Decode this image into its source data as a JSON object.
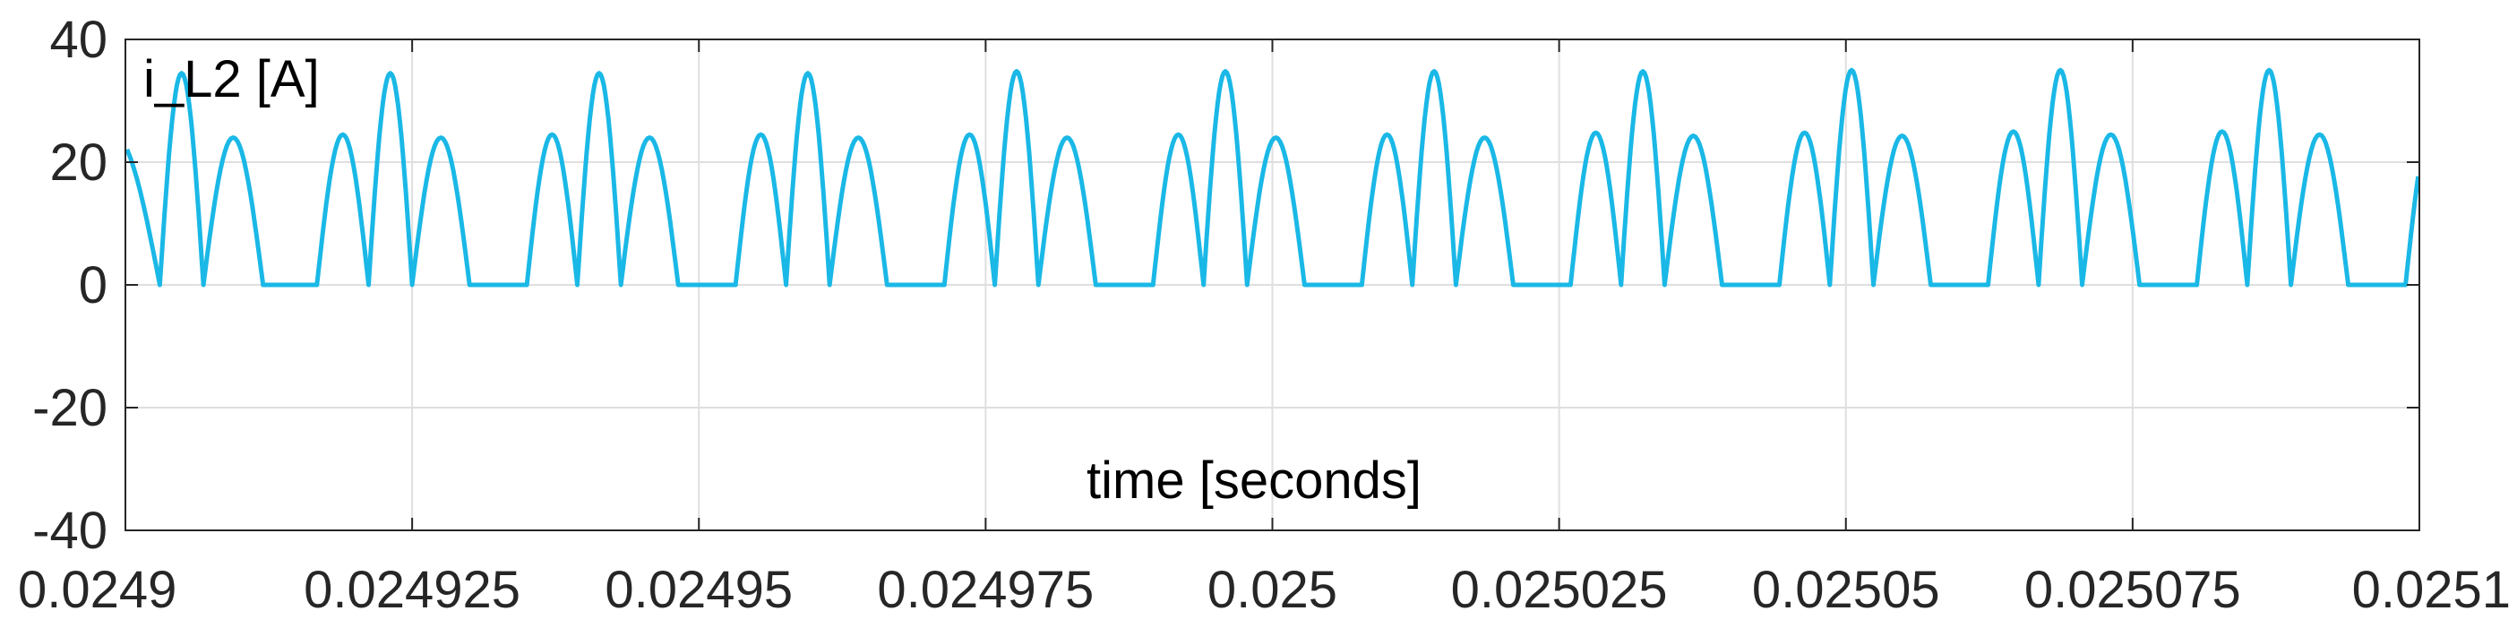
{
  "chart_data": {
    "type": "line",
    "title": "",
    "xlabel": "time [seconds]",
    "ylabel": "",
    "xlim": [
      0.0249,
      0.0251
    ],
    "ylim": [
      -40,
      40
    ],
    "x_ticks": [
      0.0249,
      0.024925,
      0.02495,
      0.024975,
      0.025,
      0.025025,
      0.02505,
      0.025075,
      0.0251
    ],
    "x_tick_labels": [
      "0.0249",
      "0.024925",
      "0.02495",
      "0.024975",
      "0.025",
      "0.025025",
      "0.02505",
      "0.025075",
      "0.0251"
    ],
    "y_ticks": [
      -40,
      -20,
      0,
      20,
      40
    ],
    "y_tick_labels": [
      "-40",
      "-20",
      "0",
      "20",
      "40"
    ],
    "grid": true,
    "annotations": [
      {
        "text": "i_L2 [A]",
        "position": "top-left"
      }
    ],
    "series": [
      {
        "name": "i_L2 [A]",
        "color": "#1ab8e6",
        "pulses": [
          {
            "start": 0.024895,
            "end": 0.024903,
            "peak": 24.5
          },
          {
            "start": 0.024903,
            "end": 0.0249068,
            "peak": 34.5
          },
          {
            "start": 0.0249068,
            "end": 0.024912,
            "peak": 24.0
          },
          {
            "start": 0.0249167,
            "end": 0.0249212,
            "peak": 24.5
          },
          {
            "start": 0.0249212,
            "end": 0.024925,
            "peak": 34.5
          },
          {
            "start": 0.024925,
            "end": 0.02493,
            "peak": 24.0
          },
          {
            "start": 0.024935,
            "end": 0.0249394,
            "peak": 24.5
          },
          {
            "start": 0.0249394,
            "end": 0.0249432,
            "peak": 34.5
          },
          {
            "start": 0.0249432,
            "end": 0.0249482,
            "peak": 24.0
          },
          {
            "start": 0.0249532,
            "end": 0.0249576,
            "peak": 24.5
          },
          {
            "start": 0.0249576,
            "end": 0.0249614,
            "peak": 34.5
          },
          {
            "start": 0.0249614,
            "end": 0.0249664,
            "peak": 24.0
          },
          {
            "start": 0.0249714,
            "end": 0.0249758,
            "peak": 24.5
          },
          {
            "start": 0.0249758,
            "end": 0.0249796,
            "peak": 34.8
          },
          {
            "start": 0.0249796,
            "end": 0.0249846,
            "peak": 24.0
          },
          {
            "start": 0.0249896,
            "end": 0.024994,
            "peak": 24.5
          },
          {
            "start": 0.024994,
            "end": 0.0249978,
            "peak": 34.8
          },
          {
            "start": 0.0249978,
            "end": 0.0250028,
            "peak": 24.0
          },
          {
            "start": 0.0250078,
            "end": 0.0250122,
            "peak": 24.5
          },
          {
            "start": 0.0250122,
            "end": 0.025016,
            "peak": 34.8
          },
          {
            "start": 0.025016,
            "end": 0.025021,
            "peak": 24.0
          },
          {
            "start": 0.025026,
            "end": 0.0250304,
            "peak": 24.8
          },
          {
            "start": 0.0250304,
            "end": 0.0250342,
            "peak": 34.8
          },
          {
            "start": 0.0250342,
            "end": 0.0250392,
            "peak": 24.3
          },
          {
            "start": 0.0250442,
            "end": 0.0250486,
            "peak": 24.8
          },
          {
            "start": 0.0250486,
            "end": 0.0250524,
            "peak": 35.0
          },
          {
            "start": 0.0250524,
            "end": 0.0250574,
            "peak": 24.3
          },
          {
            "start": 0.0250624,
            "end": 0.0250668,
            "peak": 25.0
          },
          {
            "start": 0.0250668,
            "end": 0.0250706,
            "peak": 35.0
          },
          {
            "start": 0.0250706,
            "end": 0.0250756,
            "peak": 24.5
          },
          {
            "start": 0.0250806,
            "end": 0.025085,
            "peak": 25.0
          },
          {
            "start": 0.025085,
            "end": 0.0250888,
            "peak": 35.0
          },
          {
            "start": 0.0250888,
            "end": 0.0250938,
            "peak": 24.5
          },
          {
            "start": 0.0250988,
            "end": 0.0251032,
            "peak": 25.0
          }
        ]
      }
    ]
  }
}
